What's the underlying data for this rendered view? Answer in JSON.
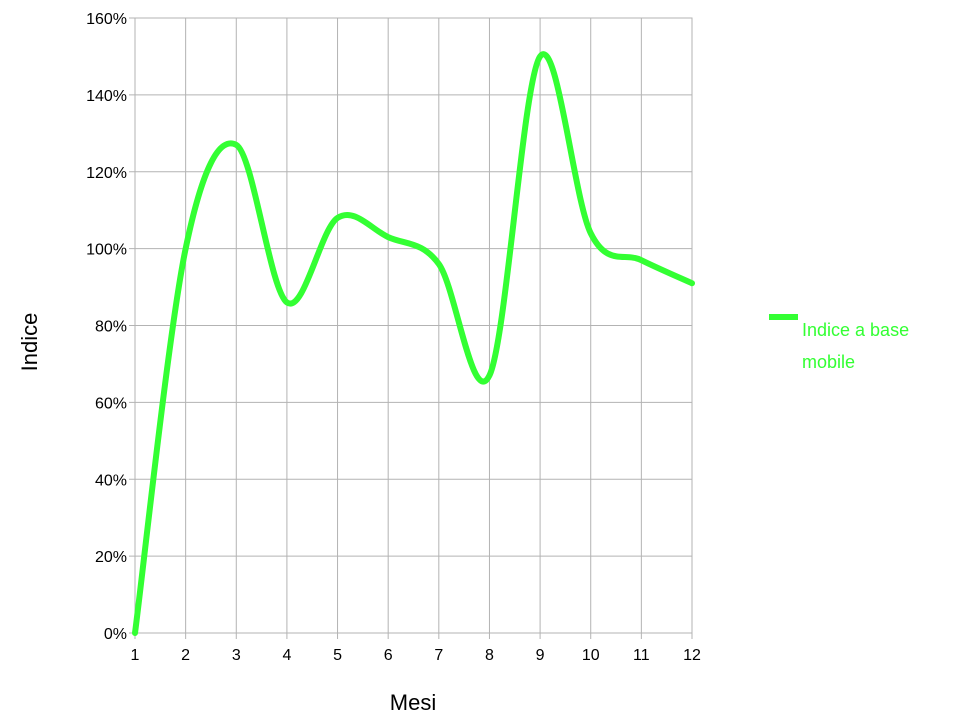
{
  "chart_data": {
    "type": "line",
    "x": [
      1,
      2,
      3,
      4,
      5,
      6,
      7,
      8,
      9,
      10,
      11,
      12
    ],
    "series": [
      {
        "name": "Indice a base\nmobile",
        "values": [
          0,
          100,
          127,
          86,
          108,
          103,
          96,
          67,
          150,
          104,
          97,
          91
        ],
        "color": "#33ff33"
      }
    ],
    "xlabel": "Mesi",
    "ylabel": "Indice",
    "x_ticks": [
      "1",
      "2",
      "3",
      "4",
      "5",
      "6",
      "7",
      "8",
      "9",
      "10",
      "11",
      "12"
    ],
    "y_ticks": [
      "0%",
      "20%",
      "40%",
      "60%",
      "80%",
      "100%",
      "120%",
      "140%",
      "160%"
    ],
    "y_tick_values": [
      0,
      20,
      40,
      60,
      80,
      100,
      120,
      140,
      160
    ],
    "xlim": [
      1,
      12
    ],
    "ylim": [
      0,
      160
    ],
    "grid": true,
    "smooth": true,
    "legend_position": "right"
  }
}
